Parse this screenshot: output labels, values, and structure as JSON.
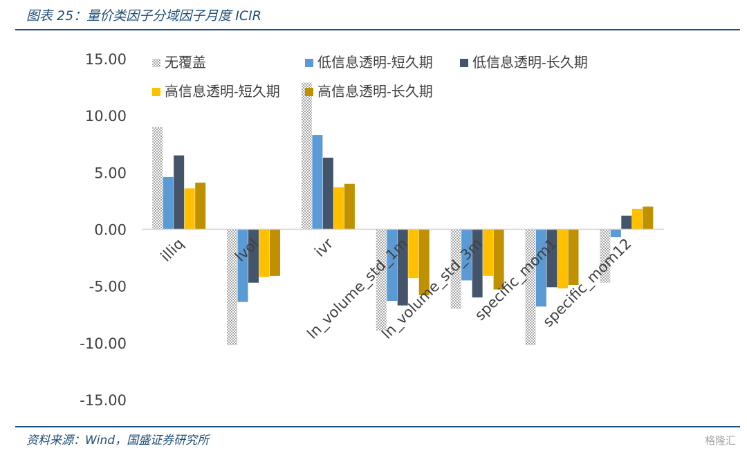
{
  "figure": {
    "title": "图表 25：量价类因子分域因子月度 ICIR",
    "source": "资料来源：Wind，国盛证券研究所",
    "watermark": "格隆汇"
  },
  "colors": {
    "rule": "#1f4e79",
    "no_coverage": "#a6a6a6",
    "low_short": "#5b9bd5",
    "low_long": "#44546a",
    "high_short": "#ffc000",
    "high_long": "#bf9000"
  },
  "chart_data": {
    "type": "bar",
    "categories": [
      "illiq",
      "lvol",
      "ivr",
      "ln_volume_std_1m",
      "ln_volume_std_3m",
      "specific_mom1",
      "specific_mom12"
    ],
    "ylim": [
      -15,
      15
    ],
    "yticks": [
      "15.00",
      "10.00",
      "5.00",
      "0.00",
      "-5.00",
      "-10.00",
      "-15.00"
    ],
    "ytick_values": [
      15,
      10,
      5,
      0,
      -5,
      -10,
      -15
    ],
    "legend_position": "top-left (inside plot)",
    "grid": false,
    "series": [
      {
        "name": "无覆盖",
        "pattern": "checker",
        "values": [
          9.0,
          -10.2,
          12.9,
          -8.9,
          -7.0,
          -10.2,
          -4.7
        ]
      },
      {
        "name": "低信息透明-短久期",
        "values": [
          4.6,
          -6.4,
          8.3,
          -6.3,
          -4.5,
          -6.8,
          -0.7
        ]
      },
      {
        "name": "低信息透明-长久期",
        "values": [
          6.5,
          -4.7,
          6.3,
          -6.7,
          -6.0,
          -5.1,
          1.2
        ]
      },
      {
        "name": "高信息透明-短久期",
        "values": [
          3.6,
          -4.2,
          3.7,
          -4.3,
          -4.1,
          -5.2,
          1.8
        ]
      },
      {
        "name": "高信息透明-长久期",
        "values": [
          4.1,
          -4.1,
          4.0,
          -5.8,
          -5.3,
          -4.9,
          2.0
        ]
      }
    ]
  }
}
